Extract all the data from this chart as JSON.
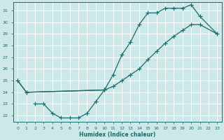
{
  "xlabel": "Humidex (Indice chaleur)",
  "bg_color": "#cce8e8",
  "grid_color": "#c0d8d8",
  "line_color": "#1a6b6b",
  "xlim": [
    -0.5,
    23.5
  ],
  "ylim": [
    21.5,
    31.7
  ],
  "yticks": [
    22,
    23,
    24,
    25,
    26,
    27,
    28,
    29,
    30,
    31
  ],
  "xticks": [
    0,
    1,
    2,
    3,
    4,
    5,
    6,
    7,
    8,
    9,
    10,
    11,
    12,
    13,
    14,
    15,
    16,
    17,
    18,
    19,
    20,
    21,
    22,
    23
  ],
  "line_upper_x": [
    0,
    1,
    10,
    11,
    12,
    13,
    14,
    15,
    16,
    17,
    18,
    19,
    20,
    21,
    23
  ],
  "line_upper_y": [
    25.0,
    24.0,
    24.2,
    25.5,
    27.2,
    28.3,
    29.8,
    30.8,
    30.8,
    31.2,
    31.2,
    31.2,
    31.5,
    30.5,
    29.0
  ],
  "line_lower_x": [
    2,
    3,
    4,
    5,
    6,
    7,
    8,
    9,
    10
  ],
  "line_lower_y": [
    23.0,
    23.0,
    22.2,
    21.8,
    21.8,
    21.8,
    22.2,
    23.2,
    24.2
  ],
  "line_diag_x": [
    0,
    1,
    10,
    11,
    12,
    13,
    14,
    15,
    16,
    17,
    18,
    19,
    20,
    21,
    23
  ],
  "line_diag_y": [
    25.0,
    24.0,
    24.2,
    24.5,
    25.0,
    25.5,
    26.0,
    26.8,
    27.5,
    28.2,
    28.8,
    29.3,
    29.8,
    29.8,
    29.0
  ]
}
